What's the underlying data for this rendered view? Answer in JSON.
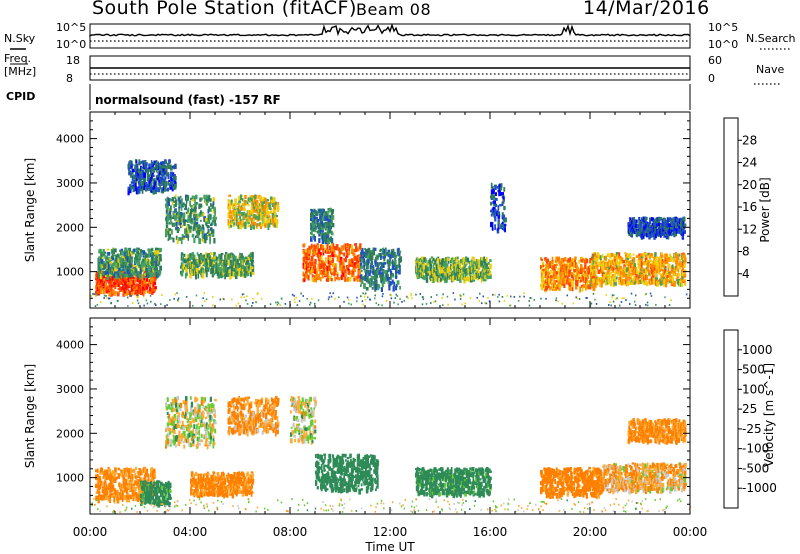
{
  "header": {
    "station": "South Pole Station (fitACF)",
    "beam": "Beam 08",
    "date": "14/Mar/2016"
  },
  "status_panel": {
    "nsky_label": "N.Sky",
    "nsky_ticks": [
      "10^5",
      "10^0"
    ],
    "nsky_ticks_right": [
      "10^5",
      "10^0"
    ],
    "nsearch_label": "N.Search",
    "freq_label_line1": "Freq.",
    "freq_label_line2": "[MHz]",
    "freq_ticks": [
      "18",
      "8"
    ],
    "nave_ticks": [
      "60",
      "0"
    ],
    "nave_label": "Nave",
    "cpid_label": "CPID",
    "cpid_value": "normalsound (fast) -157 RF"
  },
  "colors": {
    "power_scale": [
      "#0000ff",
      "#2050c0",
      "#2e7d5a",
      "#45a060",
      "#eecf10",
      "#ff8c00",
      "#ff4500",
      "#ff0000"
    ],
    "velocity_scale": [
      "#ff0000",
      "#ff4000",
      "#ff8000",
      "#ffaa33",
      "#c8c8c8",
      "#66cc33",
      "#2e8b57",
      "#2060c0",
      "#0000e0"
    ]
  },
  "chart_data": [
    {
      "type": "heatmap",
      "name": "power",
      "ylabel": "Slant Range [km]",
      "yticks": [
        "1000",
        "2000",
        "3000",
        "4000"
      ],
      "ylim": [
        180,
        4600
      ],
      "xlim": [
        0,
        24
      ],
      "colorbar": {
        "label": "Power [dB]",
        "ticks": [
          "4",
          "8",
          "12",
          "16",
          "20",
          "24",
          "28"
        ],
        "range": [
          0,
          32
        ]
      },
      "regions": [
        {
          "t0": 0.2,
          "t1": 2.6,
          "r0": 500,
          "r1": 1000,
          "value": 26
        },
        {
          "t0": 0.3,
          "t1": 2.8,
          "r0": 900,
          "r1": 1500,
          "value": 12
        },
        {
          "t0": 1.5,
          "t1": 3.4,
          "r0": 2800,
          "r1": 3500,
          "value": 7
        },
        {
          "t0": 3.0,
          "t1": 5.0,
          "r0": 1700,
          "r1": 2700,
          "value": 12
        },
        {
          "t0": 3.6,
          "t1": 6.5,
          "r0": 900,
          "r1": 1400,
          "value": 13
        },
        {
          "t0": 5.5,
          "t1": 7.5,
          "r0": 2000,
          "r1": 2700,
          "value": 18
        },
        {
          "t0": 8.5,
          "t1": 10.8,
          "r0": 800,
          "r1": 1600,
          "value": 24
        },
        {
          "t0": 8.8,
          "t1": 9.7,
          "r0": 1700,
          "r1": 2400,
          "value": 10
        },
        {
          "t0": 10.8,
          "t1": 12.4,
          "r0": 600,
          "r1": 1500,
          "value": 10
        },
        {
          "t0": 13.0,
          "t1": 16.0,
          "r0": 800,
          "r1": 1300,
          "value": 14
        },
        {
          "t0": 16.0,
          "t1": 16.6,
          "r0": 1900,
          "r1": 3000,
          "value": 6
        },
        {
          "t0": 18.0,
          "t1": 20.2,
          "r0": 600,
          "r1": 1300,
          "value": 23
        },
        {
          "t0": 20.0,
          "t1": 23.8,
          "r0": 700,
          "r1": 1400,
          "value": 20
        },
        {
          "t0": 21.5,
          "t1": 23.8,
          "r0": 1800,
          "r1": 2200,
          "value": 6
        }
      ]
    },
    {
      "type": "heatmap",
      "name": "velocity",
      "ylabel": "Slant Range [km]",
      "yticks": [
        "1000",
        "2000",
        "3000",
        "4000"
      ],
      "ylim": [
        180,
        4600
      ],
      "xlim": [
        0,
        24
      ],
      "xlabel": "Time UT",
      "xticks": [
        "00:00",
        "04:00",
        "08:00",
        "12:00",
        "16:00",
        "20:00",
        "00:00"
      ],
      "colorbar": {
        "label": "Velocity [m s^-1]",
        "ticks": [
          "1000",
          "500",
          "100",
          "25",
          "-25",
          "-100",
          "-500",
          "-1000"
        ]
      },
      "regions": [
        {
          "t0": 0.2,
          "t1": 2.6,
          "r0": 500,
          "r1": 1200,
          "value": -150
        },
        {
          "t0": 2.0,
          "t1": 3.2,
          "r0": 400,
          "r1": 900,
          "value": 200
        },
        {
          "t0": 3.0,
          "t1": 5.0,
          "r0": 1700,
          "r1": 2800,
          "value": 5
        },
        {
          "t0": 4.0,
          "t1": 6.5,
          "r0": 600,
          "r1": 1100,
          "value": -150
        },
        {
          "t0": 5.5,
          "t1": 7.5,
          "r0": 2000,
          "r1": 2800,
          "value": -120
        },
        {
          "t0": 8.0,
          "t1": 9.0,
          "r0": 1800,
          "r1": 2800,
          "value": 5
        },
        {
          "t0": 9.0,
          "t1": 11.5,
          "r0": 700,
          "r1": 1500,
          "value": 300
        },
        {
          "t0": 13.0,
          "t1": 16.0,
          "r0": 600,
          "r1": 1200,
          "value": 200
        },
        {
          "t0": 18.0,
          "t1": 20.5,
          "r0": 600,
          "r1": 1200,
          "value": -200
        },
        {
          "t0": 20.5,
          "t1": 23.8,
          "r0": 700,
          "r1": 1300,
          "value": -80
        },
        {
          "t0": 21.5,
          "t1": 23.8,
          "r0": 1800,
          "r1": 2300,
          "value": -150
        }
      ]
    }
  ]
}
